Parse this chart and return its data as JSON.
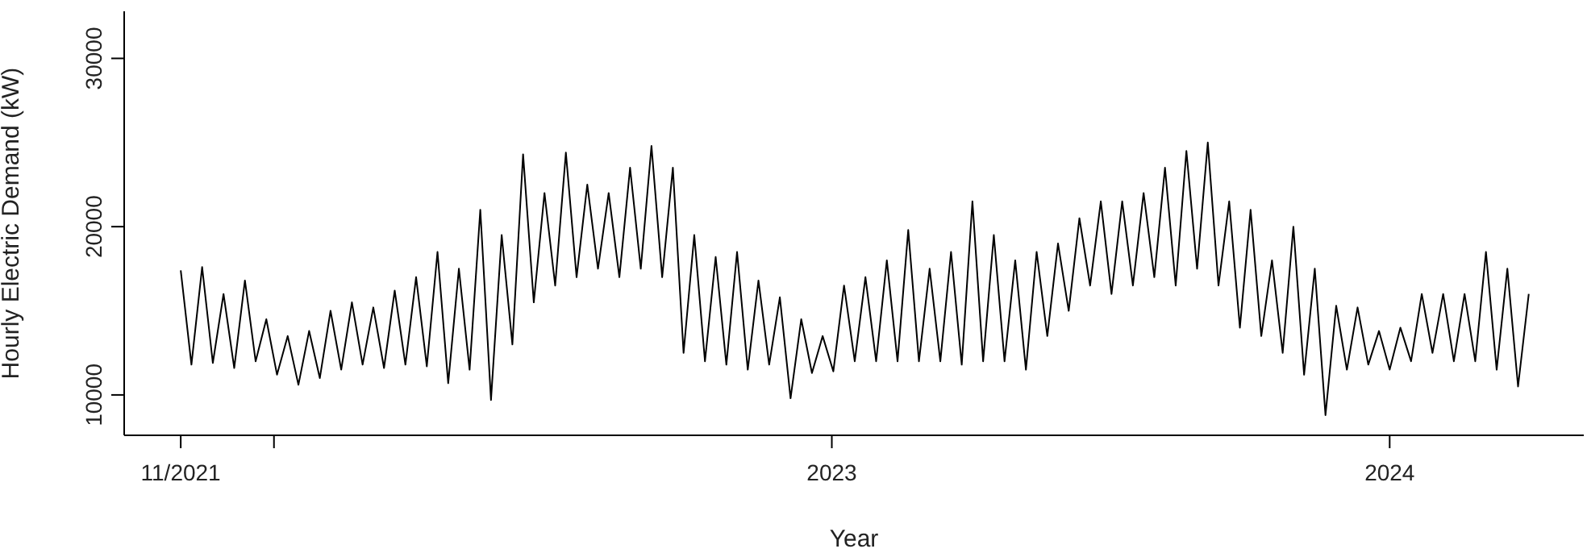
{
  "chart_data": {
    "type": "line",
    "xlabel": "Year",
    "ylabel": "Hourly Electric Demand (kW)",
    "xlim": [
      "2021-09-25",
      "2024-05-07"
    ],
    "xticks": [
      {
        "value": "2021-11-01",
        "label": "11/2021"
      },
      {
        "value": "2022-01-01",
        "label": null
      },
      "2023",
      "2024"
    ],
    "ylim": [
      7600,
      32800
    ],
    "yticks": [
      10000,
      20000,
      30000
    ],
    "grid": false,
    "legend": false,
    "marker": "none",
    "line_style": "solid",
    "x": [
      "2021-11-01",
      "2021-11-08",
      "2021-11-15",
      "2021-11-22",
      "2021-11-29",
      "2021-12-06",
      "2021-12-13",
      "2021-12-20",
      "2021-12-27",
      "2022-01-03",
      "2022-01-10",
      "2022-01-17",
      "2022-01-24",
      "2022-01-31",
      "2022-02-07",
      "2022-02-14",
      "2022-02-21",
      "2022-02-28",
      "2022-03-07",
      "2022-03-14",
      "2022-03-21",
      "2022-03-28",
      "2022-04-04",
      "2022-04-11",
      "2022-04-18",
      "2022-04-25",
      "2022-05-02",
      "2022-05-09",
      "2022-05-16",
      "2022-05-23",
      "2022-05-30",
      "2022-06-06",
      "2022-06-13",
      "2022-06-20",
      "2022-06-27",
      "2022-07-04",
      "2022-07-11",
      "2022-07-18",
      "2022-07-25",
      "2022-08-01",
      "2022-08-08",
      "2022-08-15",
      "2022-08-22",
      "2022-08-29",
      "2022-09-05",
      "2022-09-12",
      "2022-09-19",
      "2022-09-26",
      "2022-10-03",
      "2022-10-10",
      "2022-10-17",
      "2022-10-24",
      "2022-10-31",
      "2022-11-07",
      "2022-11-14",
      "2022-11-21",
      "2022-11-28",
      "2022-12-05",
      "2022-12-12",
      "2022-12-19",
      "2022-12-26",
      "2023-01-02",
      "2023-01-09",
      "2023-01-16",
      "2023-01-23",
      "2023-01-30",
      "2023-02-06",
      "2023-02-13",
      "2023-02-20",
      "2023-02-27",
      "2023-03-06",
      "2023-03-13",
      "2023-03-20",
      "2023-03-27",
      "2023-04-03",
      "2023-04-10",
      "2023-04-17",
      "2023-04-24",
      "2023-05-01",
      "2023-05-08",
      "2023-05-15",
      "2023-05-22",
      "2023-05-29",
      "2023-06-05",
      "2023-06-12",
      "2023-06-19",
      "2023-06-26",
      "2023-07-03",
      "2023-07-10",
      "2023-07-17",
      "2023-07-24",
      "2023-07-31",
      "2023-08-07",
      "2023-08-14",
      "2023-08-21",
      "2023-08-28",
      "2023-09-04",
      "2023-09-11",
      "2023-09-18",
      "2023-09-25",
      "2023-10-02",
      "2023-10-09",
      "2023-10-16",
      "2023-10-23",
      "2023-10-30",
      "2023-11-06",
      "2023-11-13",
      "2023-11-20",
      "2023-11-27",
      "2023-12-04",
      "2023-12-11",
      "2023-12-18",
      "2023-12-25",
      "2024-01-01",
      "2024-01-08",
      "2024-01-15",
      "2024-01-22",
      "2024-01-29",
      "2024-02-05",
      "2024-02-12",
      "2024-02-19",
      "2024-02-26",
      "2024-03-04",
      "2024-03-11",
      "2024-03-18",
      "2024-03-25",
      "2024-04-01"
    ],
    "series": [
      {
        "color": "#000000",
        "values": [
          17400,
          11800,
          17600,
          11900,
          16000,
          11600,
          16800,
          12000,
          14500,
          11200,
          13500,
          10600,
          13800,
          11000,
          15000,
          11500,
          15500,
          11800,
          15200,
          11600,
          16200,
          11800,
          17000,
          11700,
          18500,
          10700,
          17500,
          11500,
          21000,
          9700,
          19500,
          13000,
          24300,
          15500,
          22000,
          16500,
          24400,
          17000,
          22500,
          17500,
          22000,
          17000,
          23500,
          17500,
          24800,
          17000,
          23500,
          12500,
          19500,
          12000,
          18200,
          11800,
          18500,
          11500,
          16800,
          11800,
          15800,
          9800,
          14500,
          11300,
          13500,
          11400,
          16500,
          12000,
          17000,
          12000,
          18000,
          12000,
          19800,
          12000,
          17500,
          12000,
          18500,
          11800,
          21500,
          12000,
          19500,
          12000,
          18000,
          11500,
          18500,
          13500,
          19000,
          15000,
          20500,
          16500,
          21500,
          16000,
          21500,
          16500,
          22000,
          17000,
          23500,
          16500,
          24500,
          17500,
          25000,
          16500,
          21500,
          14000,
          21000,
          13500,
          18000,
          12500,
          20000,
          11200,
          17500,
          8800,
          15300,
          11500,
          15200,
          11800,
          13800,
          11500,
          14000,
          12000,
          16000,
          12500,
          16000,
          12000,
          16000,
          12000,
          18500,
          11500,
          17500,
          10500,
          16000
        ]
      }
    ]
  }
}
